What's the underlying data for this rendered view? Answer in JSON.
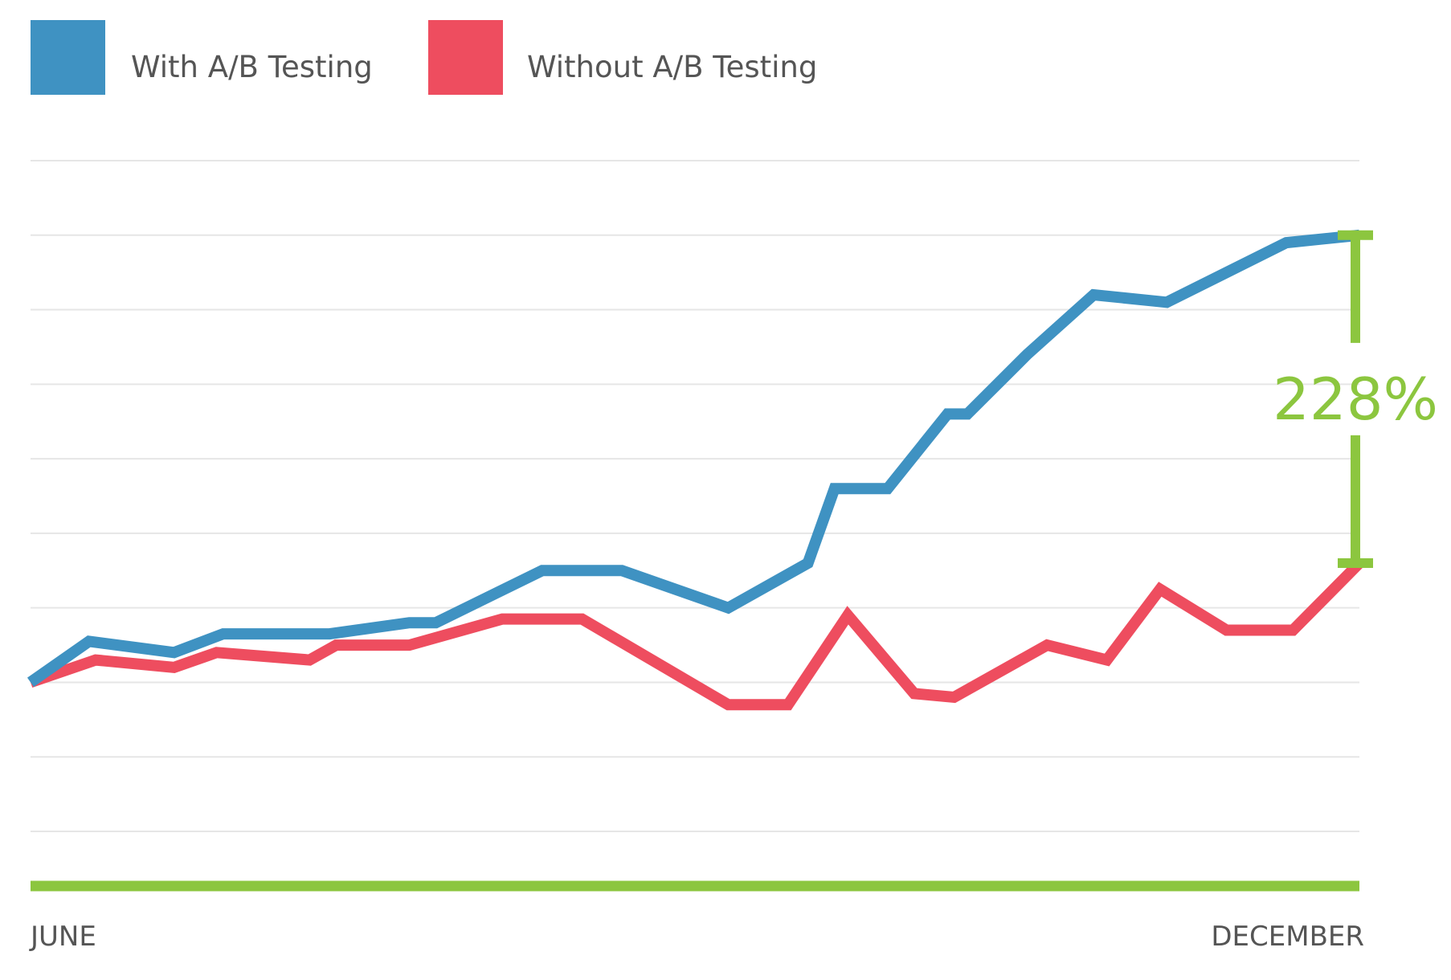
{
  "chart_data": {
    "type": "line",
    "title": "",
    "xlabel": "",
    "ylabel": "",
    "x_tick_labels": [
      "JUNE",
      "DECEMBER"
    ],
    "x": [
      0,
      5,
      11,
      16,
      24,
      31,
      34,
      40,
      47,
      52,
      57,
      63,
      66,
      71,
      79,
      82,
      85,
      87,
      90,
      95,
      97,
      100
    ],
    "ylim": [
      -2,
      7
    ],
    "grid": {
      "horizontal": true,
      "vertical": false,
      "lines": [
        -2,
        -1,
        0,
        1,
        2,
        3,
        4,
        5,
        6,
        7
      ]
    },
    "series": [
      {
        "name": "With A/B Testing",
        "color": "#3f92c2",
        "x": [
          0,
          4.4,
          10.8,
          14.5,
          22.5,
          28.5,
          30.5,
          38.5,
          44.5,
          52.5,
          58.5,
          60.5,
          64.5,
          69,
          70.5,
          75,
          80,
          85.5,
          94.5,
          100
        ],
        "values": [
          0,
          0.55,
          0.4,
          0.65,
          0.65,
          0.8,
          0.8,
          1.5,
          1.5,
          1.0,
          1.6,
          2.6,
          2.6,
          3.6,
          3.6,
          4.4,
          5.2,
          5.1,
          5.9,
          6.0
        ]
      },
      {
        "name": "Without A/B Testing",
        "color": "#ee4d5f",
        "x": [
          0,
          4.9,
          10.8,
          14,
          21,
          23,
          28.5,
          35.5,
          41.5,
          52.5,
          57,
          61.5,
          66.5,
          69.5,
          76.5,
          81,
          85,
          90,
          95,
          100
        ],
        "values": [
          0,
          0.3,
          0.2,
          0.4,
          0.3,
          0.5,
          0.5,
          0.85,
          0.85,
          -0.3,
          -0.3,
          0.9,
          -0.15,
          -0.2,
          0.5,
          0.3,
          1.25,
          0.7,
          0.7,
          1.6
        ]
      }
    ],
    "annotations": [
      {
        "label": "228%",
        "color": "#8cc63f",
        "x": 100,
        "from": 1.6,
        "to": 6.0
      }
    ],
    "legend": "top-left",
    "colors": {
      "axis": "#8cc63f",
      "grid": "#e6e6e6",
      "text": "#555555"
    }
  }
}
